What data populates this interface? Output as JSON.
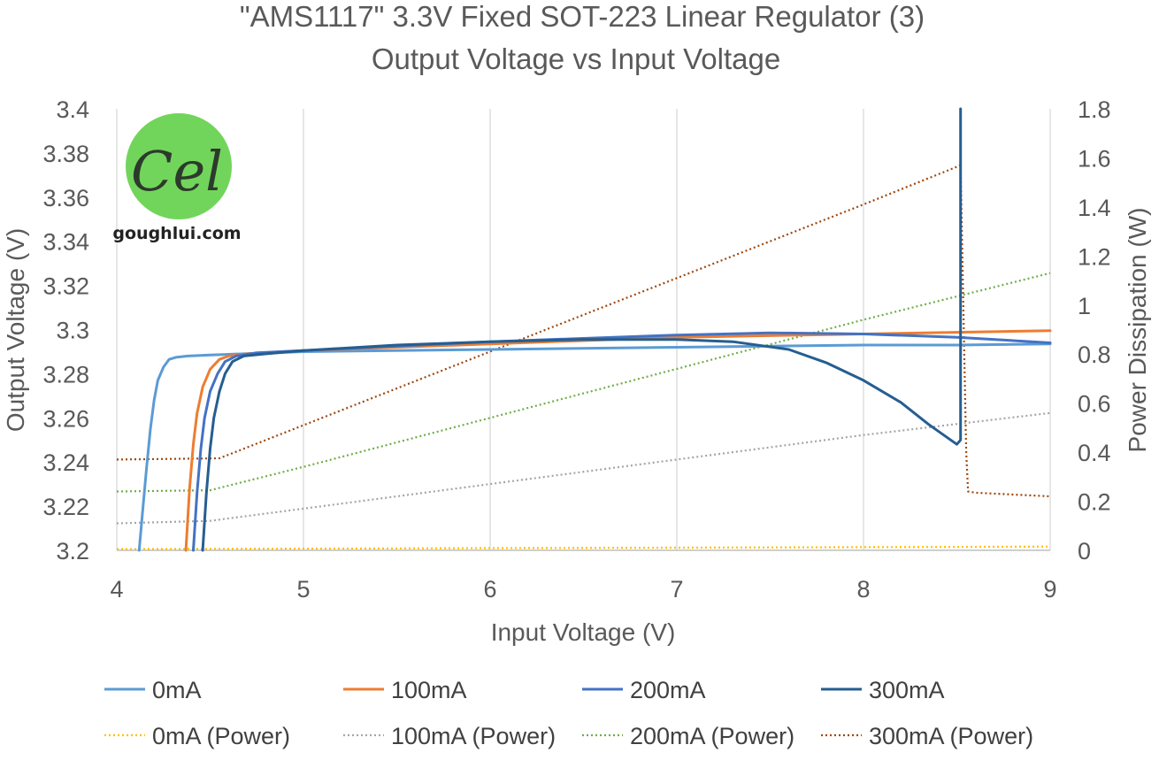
{
  "chart_data": {
    "type": "line",
    "title_lines": [
      "\"AMS1117\" 3.3V Fixed SOT-223 Linear Regulator (3)",
      "Output Voltage vs Input Voltage"
    ],
    "xlabel": "Input Voltage (V)",
    "ylabel": "Output Voltage (V)",
    "y2label": "Power Dissipation (W)",
    "xlim": [
      4,
      9
    ],
    "ylim": [
      3.2,
      3.4
    ],
    "y2lim": [
      0,
      1.8
    ],
    "xticks": [
      "4",
      "5",
      "6",
      "7",
      "8",
      "9"
    ],
    "yticks": [
      "3.2",
      "3.22",
      "3.24",
      "3.26",
      "3.28",
      "3.3",
      "3.32",
      "3.34",
      "3.36",
      "3.38",
      "3.4"
    ],
    "y2ticks": [
      "0",
      "0.2",
      "0.4",
      "0.6",
      "0.8",
      "1",
      "1.2",
      "1.4",
      "1.6",
      "1.8"
    ],
    "grid": "vertical",
    "legend_position": "bottom",
    "logo_text": "goughlui.com",
    "logo_glyph": "Cel",
    "series": [
      {
        "name": "0mA",
        "axis": "left",
        "style": "solid",
        "color": "#5B9BD5",
        "x": [
          4.12,
          4.14,
          4.16,
          4.18,
          4.2,
          4.22,
          4.25,
          4.28,
          4.32,
          4.38,
          4.5,
          5,
          6,
          7,
          8,
          8.5,
          9
        ],
        "y": [
          3.2,
          3.219,
          3.238,
          3.255,
          3.268,
          3.277,
          3.283,
          3.2865,
          3.2875,
          3.288,
          3.2885,
          3.29,
          3.291,
          3.292,
          3.293,
          3.293,
          3.2935
        ]
      },
      {
        "name": "100mA",
        "axis": "left",
        "style": "solid",
        "color": "#ED7D31",
        "x": [
          4.37,
          4.39,
          4.41,
          4.43,
          4.46,
          4.5,
          4.55,
          4.6,
          4.7,
          5,
          6,
          7,
          8,
          9
        ],
        "y": [
          3.2,
          3.228,
          3.248,
          3.262,
          3.274,
          3.282,
          3.2865,
          3.288,
          3.289,
          3.2905,
          3.2935,
          3.2965,
          3.298,
          3.2995
        ]
      },
      {
        "name": "200mA",
        "axis": "left",
        "style": "solid",
        "color": "#4472C4",
        "x": [
          4.41,
          4.43,
          4.45,
          4.47,
          4.5,
          4.54,
          4.58,
          4.64,
          4.75,
          5,
          6,
          7,
          7.5,
          8,
          8.5,
          9
        ],
        "y": [
          3.2,
          3.226,
          3.246,
          3.26,
          3.272,
          3.28,
          3.2855,
          3.288,
          3.2895,
          3.2905,
          3.2945,
          3.2975,
          3.2985,
          3.298,
          3.2965,
          3.294
        ]
      },
      {
        "name": "300mA",
        "axis": "left",
        "style": "solid",
        "color": "#255E91",
        "x": [
          4.46,
          4.48,
          4.5,
          4.52,
          4.55,
          4.58,
          4.62,
          4.68,
          4.8,
          5,
          5.5,
          6,
          6.5,
          7,
          7.3,
          7.6,
          7.8,
          8,
          8.2,
          8.35,
          8.5,
          8.52,
          8.52
        ],
        "y": [
          3.2,
          3.226,
          3.246,
          3.26,
          3.272,
          3.28,
          3.2855,
          3.288,
          3.289,
          3.2905,
          3.293,
          3.2945,
          3.2955,
          3.2955,
          3.2945,
          3.291,
          3.285,
          3.277,
          3.267,
          3.257,
          3.248,
          3.25,
          3.4
        ]
      },
      {
        "name": "0mA (Power)",
        "axis": "right",
        "style": "dotted",
        "color": "#FFC000",
        "x": [
          4,
          5,
          6,
          7,
          8,
          9
        ],
        "y": [
          0.005,
          0.007,
          0.009,
          0.011,
          0.013,
          0.015
        ]
      },
      {
        "name": "100mA (Power)",
        "axis": "right",
        "style": "dotted",
        "color": "#A5A5A5",
        "x": [
          4,
          4.5,
          5,
          6,
          7,
          8,
          9
        ],
        "y": [
          0.11,
          0.12,
          0.17,
          0.27,
          0.37,
          0.47,
          0.56
        ]
      },
      {
        "name": "200mA (Power)",
        "axis": "right",
        "style": "dotted",
        "color": "#70AD47",
        "x": [
          4,
          4.5,
          5,
          6,
          7,
          8,
          9
        ],
        "y": [
          0.24,
          0.245,
          0.34,
          0.54,
          0.74,
          0.94,
          1.13
        ]
      },
      {
        "name": "300mA (Power)",
        "axis": "right",
        "style": "dotted",
        "color": "#9E480E",
        "x": [
          4,
          4.55,
          5,
          6,
          7,
          8,
          8.52,
          8.55,
          8.56,
          8.6,
          9
        ],
        "y": [
          0.37,
          0.375,
          0.51,
          0.81,
          1.11,
          1.41,
          1.57,
          0.4,
          0.24,
          0.235,
          0.22
        ]
      }
    ]
  }
}
